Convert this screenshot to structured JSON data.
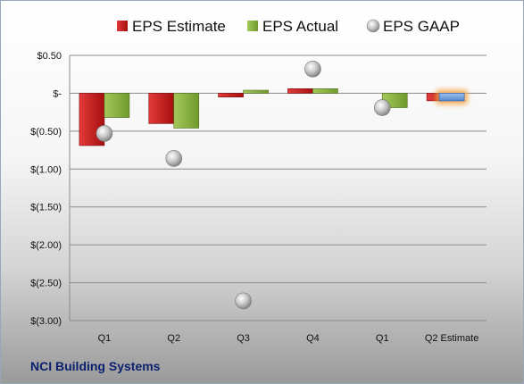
{
  "company": "NCI Building Systems",
  "chart_data": {
    "type": "bar",
    "categories": [
      "Q1",
      "Q2",
      "Q3",
      "Q4",
      "Q1",
      "Q2 Estimate"
    ],
    "series": [
      {
        "name": "EPS Estimate",
        "values": [
          -0.69,
          -0.4,
          -0.05,
          0.06,
          null,
          -0.1
        ],
        "color": "#cc1f1f"
      },
      {
        "name": "EPS Actual",
        "values": [
          -0.32,
          -0.46,
          0.04,
          0.06,
          -0.19,
          null
        ],
        "color": "#8db53e"
      },
      {
        "name": "EPS GAAP",
        "values": [
          -0.53,
          -0.86,
          -2.74,
          0.32,
          -0.19,
          null
        ],
        "color": "#b8b8b8"
      }
    ],
    "highlight": {
      "category_index": 5,
      "value": -0.1,
      "color": "#6fa0dc",
      "glow": "#f4a340"
    },
    "yticks": [
      0.5,
      0,
      -0.5,
      -1.0,
      -1.5,
      -2.0,
      -2.5,
      -3.0
    ],
    "yticklabels": [
      "$0.50",
      "$-",
      "$(0.50)",
      "$(1.00)",
      "$(1.50)",
      "$(2.00)",
      "$(2.50)",
      "$(3.00)"
    ],
    "ylim": [
      -3.0,
      0.5
    ],
    "grid": true,
    "legend": "top"
  }
}
